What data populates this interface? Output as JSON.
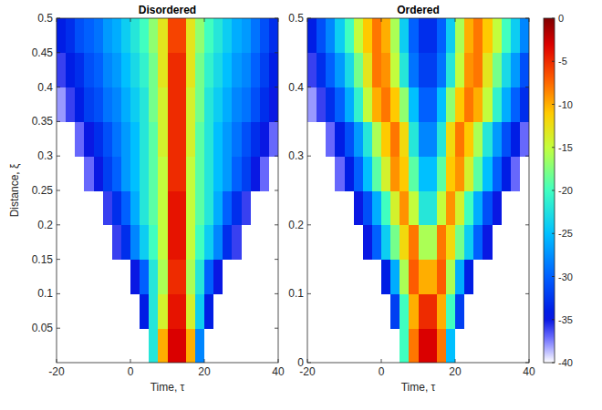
{
  "chart_data": [
    {
      "type": "heatmap",
      "title": "Disordered",
      "xlabel": "Time, τ",
      "ylabel": "Distance, ξ",
      "xlim": [
        -20,
        40
      ],
      "ylim": [
        0,
        0.5
      ],
      "xticks": [
        -20,
        0,
        20,
        40
      ],
      "yticks": [
        0.05,
        0.1,
        0.15,
        0.2,
        0.25,
        0.3,
        0.35,
        0.4,
        0.45,
        0.5
      ],
      "x_edges": [
        -20,
        -17.5,
        -15,
        -12.5,
        -10,
        -7.5,
        -5,
        -2.5,
        0,
        2.5,
        5,
        7.5,
        10,
        12.5,
        15,
        17.5,
        20,
        22.5,
        25,
        27.5,
        30,
        32.5,
        35,
        37.5,
        40
      ],
      "y_edges": [
        0,
        0.05,
        0.1,
        0.15,
        0.2,
        0.25,
        0.3,
        0.35,
        0.4,
        0.45,
        0.5
      ],
      "cells": [
        [
          -40,
          -40,
          -40,
          -40,
          -40,
          -40,
          -40,
          -40,
          -40,
          -40,
          -22,
          -10,
          -3,
          -3,
          -10,
          -28,
          -40,
          -40,
          -40,
          -40,
          -40,
          -40,
          -40,
          -40
        ],
        [
          -40,
          -40,
          -40,
          -40,
          -40,
          -40,
          -40,
          -40,
          -40,
          -34,
          -22,
          -14,
          -4,
          -4,
          -14,
          -24,
          -34,
          -40,
          -40,
          -40,
          -40,
          -40,
          -40,
          -40
        ],
        [
          -40,
          -40,
          -40,
          -40,
          -40,
          -40,
          -40,
          -40,
          -35,
          -30,
          -22,
          -16,
          -5,
          -5,
          -16,
          -22,
          -30,
          -35,
          -40,
          -40,
          -40,
          -40,
          -40,
          -40
        ],
        [
          -40,
          -40,
          -40,
          -40,
          -40,
          -40,
          -36,
          -33,
          -28,
          -24,
          -20,
          -15,
          -4,
          -4,
          -15,
          -20,
          -24,
          -28,
          -33,
          -36,
          -40,
          -40,
          -40,
          -40
        ],
        [
          -40,
          -40,
          -40,
          -40,
          -40,
          -36,
          -33,
          -30,
          -26,
          -22,
          -19,
          -15,
          -4,
          -4,
          -15,
          -19,
          -22,
          -26,
          -30,
          -33,
          -36,
          -40,
          -40,
          -40
        ],
        [
          -40,
          -40,
          -40,
          -37,
          -35,
          -32,
          -30,
          -27,
          -25,
          -22,
          -19,
          -15,
          -5,
          -5,
          -15,
          -19,
          -22,
          -25,
          -27,
          -30,
          -32,
          -35,
          -37,
          -40
        ],
        [
          -40,
          -40,
          -37,
          -35,
          -33,
          -31,
          -29,
          -27,
          -25,
          -22,
          -19,
          -14,
          -5,
          -5,
          -14,
          -19,
          -22,
          -25,
          -27,
          -29,
          -31,
          -33,
          -35,
          -37
        ],
        [
          -38,
          -36,
          -34,
          -32,
          -31,
          -29,
          -28,
          -26,
          -24,
          -22,
          -18,
          -14,
          -5,
          -5,
          -14,
          -18,
          -22,
          -24,
          -26,
          -28,
          -29,
          -31,
          -33,
          -35
        ],
        [
          -36,
          -34,
          -33,
          -31,
          -30,
          -28,
          -27,
          -25,
          -23,
          -21,
          -18,
          -13,
          -5,
          -5,
          -13,
          -18,
          -21,
          -23,
          -25,
          -27,
          -28,
          -30,
          -32,
          -34
        ],
        [
          -34,
          -33,
          -31,
          -30,
          -29,
          -27,
          -26,
          -24,
          -22,
          -20,
          -17,
          -13,
          -6,
          -6,
          -13,
          -17,
          -20,
          -22,
          -24,
          -26,
          -27,
          -29,
          -31,
          -33
        ]
      ]
    },
    {
      "type": "heatmap",
      "title": "Ordered",
      "xlabel": "Time, τ",
      "xlim": [
        -20,
        40
      ],
      "ylim": [
        0,
        0.5
      ],
      "xticks": [
        -20,
        0,
        20,
        40
      ],
      "yticks": [
        0,
        0.1,
        0.2,
        0.3,
        0.4,
        0.5
      ],
      "x_edges": [
        -20,
        -17.5,
        -15,
        -12.5,
        -10,
        -7.5,
        -5,
        -2.5,
        0,
        2.5,
        5,
        7.5,
        10,
        12.5,
        15,
        17.5,
        20,
        22.5,
        25,
        27.5,
        30,
        32.5,
        35,
        37.5,
        40
      ],
      "y_edges": [
        0,
        0.05,
        0.1,
        0.15,
        0.2,
        0.25,
        0.3,
        0.35,
        0.4,
        0.45,
        0.5
      ],
      "cells": [
        [
          -40,
          -40,
          -40,
          -40,
          -40,
          -40,
          -40,
          -40,
          -40,
          -40,
          -20,
          -8,
          -3,
          -3,
          -8,
          -25,
          -40,
          -40,
          -40,
          -40,
          -40,
          -40,
          -40,
          -40
        ],
        [
          -40,
          -40,
          -40,
          -40,
          -40,
          -40,
          -40,
          -40,
          -40,
          -32,
          -20,
          -10,
          -5,
          -5,
          -10,
          -20,
          -32,
          -40,
          -40,
          -40,
          -40,
          -40,
          -40,
          -40
        ],
        [
          -40,
          -40,
          -40,
          -40,
          -40,
          -40,
          -40,
          -40,
          -34,
          -26,
          -16,
          -7,
          -10,
          -10,
          -7,
          -16,
          -26,
          -34,
          -40,
          -40,
          -40,
          -40,
          -40,
          -40
        ],
        [
          -40,
          -40,
          -40,
          -40,
          -40,
          -40,
          -35,
          -30,
          -24,
          -18,
          -12,
          -8,
          -16,
          -16,
          -8,
          -12,
          -18,
          -24,
          -30,
          -35,
          -40,
          -40,
          -40,
          -40
        ],
        [
          -40,
          -40,
          -40,
          -40,
          -40,
          -35,
          -31,
          -26,
          -20,
          -14,
          -9,
          -15,
          -22,
          -22,
          -15,
          -9,
          -14,
          -20,
          -26,
          -31,
          -35,
          -40,
          -40,
          -40
        ],
        [
          -40,
          -40,
          -40,
          -37,
          -34,
          -30,
          -25,
          -19,
          -14,
          -9,
          -11,
          -19,
          -25,
          -25,
          -19,
          -11,
          -9,
          -14,
          -19,
          -25,
          -30,
          -34,
          -37,
          -40
        ],
        [
          -40,
          -40,
          -37,
          -34,
          -31,
          -27,
          -22,
          -16,
          -11,
          -8,
          -12,
          -22,
          -28,
          -28,
          -22,
          -12,
          -8,
          -11,
          -16,
          -22,
          -27,
          -31,
          -34,
          -37
        ],
        [
          -38,
          -36,
          -33,
          -30,
          -26,
          -21,
          -15,
          -10,
          -8,
          -11,
          -17,
          -25,
          -30,
          -30,
          -25,
          -17,
          -11,
          -8,
          -10,
          -15,
          -21,
          -26,
          -30,
          -33
        ],
        [
          -36,
          -33,
          -30,
          -27,
          -23,
          -18,
          -13,
          -8,
          -9,
          -15,
          -22,
          -29,
          -32,
          -32,
          -29,
          -22,
          -15,
          -9,
          -8,
          -13,
          -18,
          -23,
          -27,
          -31
        ],
        [
          -34,
          -31,
          -28,
          -24,
          -20,
          -15,
          -11,
          -8,
          -10,
          -16,
          -24,
          -30,
          -33,
          -33,
          -30,
          -24,
          -16,
          -10,
          -8,
          -11,
          -15,
          -20,
          -24,
          -28
        ]
      ],
      "colorbar": {
        "range": [
          -40,
          0
        ],
        "ticks": [
          0,
          -5,
          -10,
          -15,
          -20,
          -25,
          -30,
          -35,
          -40
        ]
      }
    }
  ]
}
